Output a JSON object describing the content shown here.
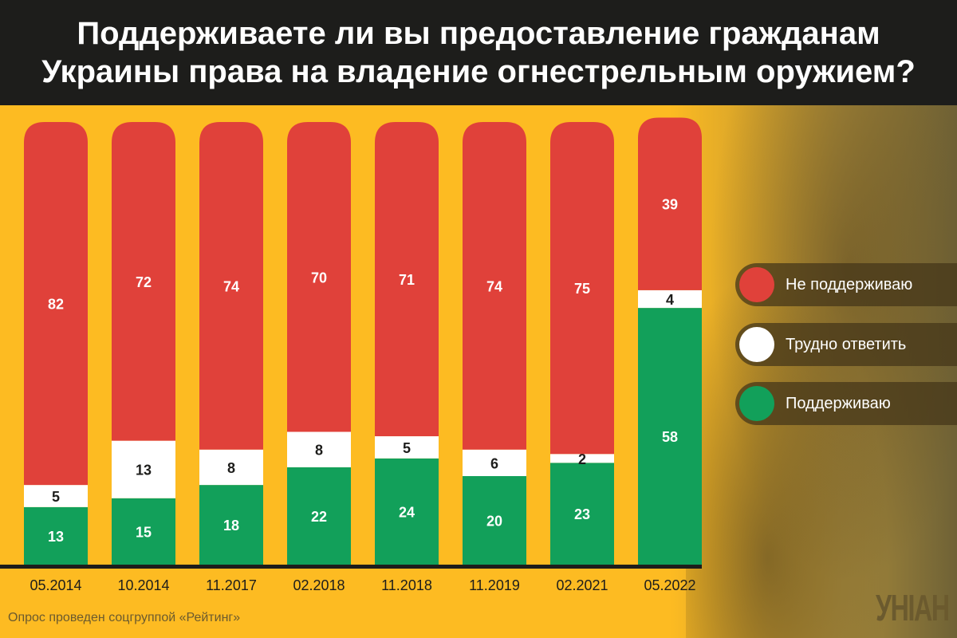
{
  "title_lines": [
    "Поддерживаете ли вы предоставление гражданам",
    "Украины права на владение огнестрельным оружием?"
  ],
  "footer": "Опрос проведен соцгруппой «Рейтинг»",
  "logo": "УНІАН",
  "chart_data": {
    "type": "bar",
    "stacked": true,
    "categories": [
      "05.2014",
      "10.2014",
      "11.2017",
      "02.2018",
      "11.2018",
      "11.2019",
      "02.2021",
      "05.2022"
    ],
    "series": [
      {
        "name": "Поддерживаю",
        "color": "#12a05a",
        "label_color": "#ffffff",
        "values": [
          13,
          15,
          18,
          22,
          24,
          20,
          23,
          58
        ]
      },
      {
        "name": "Трудно ответить",
        "color": "#ffffff",
        "label_color": "#1d1d1b",
        "values": [
          5,
          13,
          8,
          8,
          5,
          6,
          2,
          4
        ]
      },
      {
        "name": "Не поддерживаю",
        "color": "#e0413a",
        "label_color": "#ffffff",
        "values": [
          82,
          72,
          74,
          70,
          71,
          74,
          75,
          39
        ]
      }
    ],
    "ylim": [
      0,
      100
    ],
    "legend_position": "right",
    "grid": false
  }
}
